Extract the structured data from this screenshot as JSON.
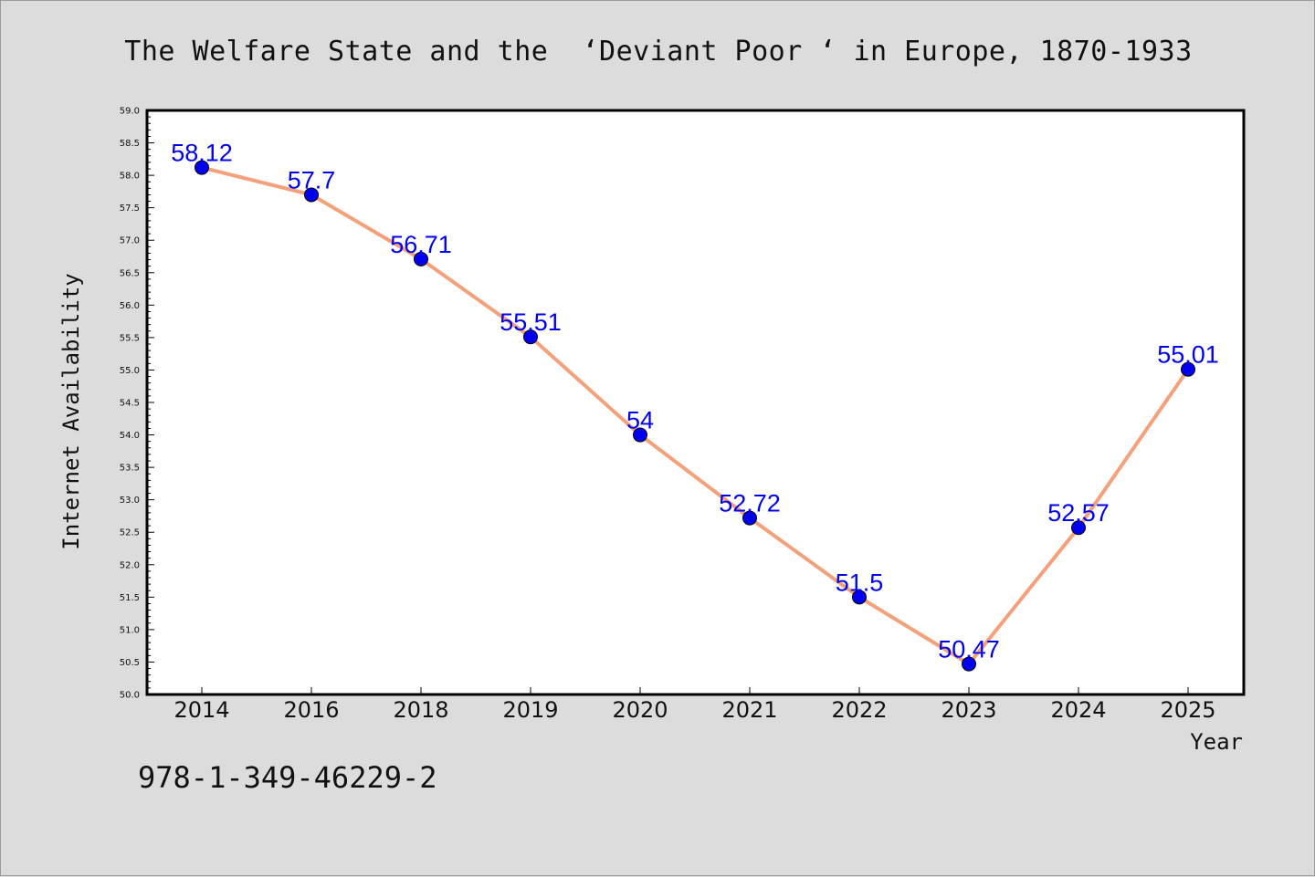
{
  "chart_data": {
    "type": "line",
    "title": "The Welfare State and the  ‘Deviant Poor ‘ in Europe, 1870-1933",
    "xlabel": "Year",
    "ylabel": "Internet Availability",
    "categories": [
      "2014",
      "2016",
      "2018",
      "2019",
      "2020",
      "2021",
      "2022",
      "2023",
      "2024",
      "2025"
    ],
    "series": [
      {
        "values": [
          58.12,
          57.7,
          56.71,
          55.51,
          54,
          52.72,
          51.5,
          50.47,
          52.57,
          55.01
        ],
        "value_labels": [
          "58.12",
          "57.7",
          "56.71",
          "55.51",
          "54",
          "52.72",
          "51.5",
          "50.47",
          "52.57",
          "55.01"
        ],
        "line_color": "#f4a07a",
        "marker_color": "#0000ee"
      }
    ],
    "ylim": [
      50.0,
      59.0
    ],
    "ytick_labels": [
      "50.0",
      "50.5",
      "51.0",
      "51.5",
      "52.0",
      "52.5",
      "53.0",
      "53.5",
      "54.0",
      "54.5",
      "55.0",
      "55.5",
      "56.0",
      "56.5",
      "57.0",
      "57.5",
      "58.0",
      "58.5",
      "59.0"
    ],
    "grid": false,
    "legend": "none"
  },
  "footer": {
    "isbn": "978-1-349-46229-2"
  },
  "colors": {
    "background": "#dcdcdc",
    "plot_background": "#ffffff",
    "line": "#f4a07a",
    "markers": "#0000ee",
    "labels": "#0000ee"
  }
}
